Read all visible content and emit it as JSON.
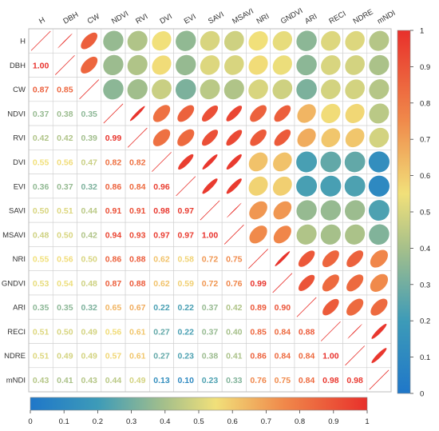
{
  "chart_data": {
    "type": "heatmap",
    "subtype": "correlation-matrix",
    "variables": [
      "H",
      "DBH",
      "CW",
      "NDVI",
      "RVI",
      "DVI",
      "EVI",
      "SAVI",
      "MSAVI",
      "NRI",
      "GNDVI",
      "ARI",
      "RECI",
      "NDRE",
      "mNDI"
    ],
    "matrix": [
      [
        1,
        1.0,
        0.87,
        0.37,
        0.42,
        0.55,
        0.36,
        0.5,
        0.48,
        0.55,
        0.53,
        0.35,
        0.51,
        0.51,
        0.43
      ],
      [
        1.0,
        1,
        0.85,
        0.38,
        0.42,
        0.56,
        0.37,
        0.51,
        0.5,
        0.56,
        0.54,
        0.35,
        0.5,
        0.49,
        0.41
      ],
      [
        0.87,
        0.85,
        1,
        0.35,
        0.39,
        0.47,
        0.32,
        0.44,
        0.42,
        0.5,
        0.48,
        0.32,
        0.49,
        0.49,
        0.43
      ],
      [
        0.37,
        0.38,
        0.35,
        1,
        0.99,
        0.82,
        0.86,
        0.91,
        0.94,
        0.86,
        0.87,
        0.65,
        0.56,
        0.57,
        0.44
      ],
      [
        0.42,
        0.42,
        0.39,
        0.99,
        1,
        0.82,
        0.84,
        0.91,
        0.93,
        0.88,
        0.88,
        0.67,
        0.61,
        0.61,
        0.49
      ],
      [
        0.55,
        0.56,
        0.47,
        0.82,
        0.82,
        1,
        0.96,
        0.98,
        0.97,
        0.62,
        0.62,
        0.22,
        0.27,
        0.27,
        0.13
      ],
      [
        0.36,
        0.37,
        0.32,
        0.86,
        0.84,
        0.96,
        1,
        0.97,
        0.97,
        0.58,
        0.59,
        0.22,
        0.22,
        0.23,
        0.1
      ],
      [
        0.5,
        0.51,
        0.44,
        0.91,
        0.91,
        0.98,
        0.97,
        1,
        1.0,
        0.72,
        0.72,
        0.37,
        0.37,
        0.38,
        0.23
      ],
      [
        0.48,
        0.5,
        0.42,
        0.94,
        0.93,
        0.97,
        0.97,
        1.0,
        1,
        0.75,
        0.76,
        0.42,
        0.4,
        0.41,
        0.33
      ],
      [
        0.55,
        0.56,
        0.5,
        0.86,
        0.88,
        0.62,
        0.58,
        0.72,
        0.75,
        1,
        0.99,
        0.89,
        0.85,
        0.86,
        0.76
      ],
      [
        0.53,
        0.54,
        0.48,
        0.87,
        0.88,
        0.62,
        0.59,
        0.72,
        0.76,
        0.99,
        1,
        0.9,
        0.84,
        0.84,
        0.75
      ],
      [
        0.35,
        0.35,
        0.32,
        0.65,
        0.67,
        0.22,
        0.22,
        0.37,
        0.42,
        0.89,
        0.9,
        1,
        0.88,
        0.84,
        0.84
      ],
      [
        0.51,
        0.5,
        0.49,
        0.56,
        0.61,
        0.27,
        0.22,
        0.37,
        0.4,
        0.85,
        0.84,
        0.88,
        1,
        1.0,
        0.98
      ],
      [
        0.51,
        0.49,
        0.49,
        0.57,
        0.61,
        0.27,
        0.23,
        0.38,
        0.41,
        0.86,
        0.84,
        0.84,
        1.0,
        1,
        0.98
      ],
      [
        0.43,
        0.41,
        0.43,
        0.44,
        0.49,
        0.13,
        0.1,
        0.23,
        0.33,
        0.76,
        0.75,
        0.84,
        0.98,
        0.98,
        1
      ]
    ],
    "lower_triangle": "numbers",
    "upper_triangle": "ellipses",
    "diagonal": "line",
    "color_scale": {
      "range": [
        0,
        1
      ],
      "stops": [
        "#1f77c9",
        "#3d9bb8",
        "#a6c08a",
        "#f1e07a",
        "#f08a4b",
        "#e8302b"
      ],
      "right_bar_ticks": [
        "1",
        "0.9",
        "0.8",
        "0.7",
        "0.6",
        "0.5",
        "0.4",
        "0.3",
        "0.2",
        "0.1",
        "0"
      ],
      "bottom_bar_ticks": [
        "0",
        "0.1",
        "0.2",
        "0.3",
        "0.4",
        "0.5",
        "0.6",
        "0.7",
        "0.8",
        "0.9",
        "1"
      ]
    }
  }
}
